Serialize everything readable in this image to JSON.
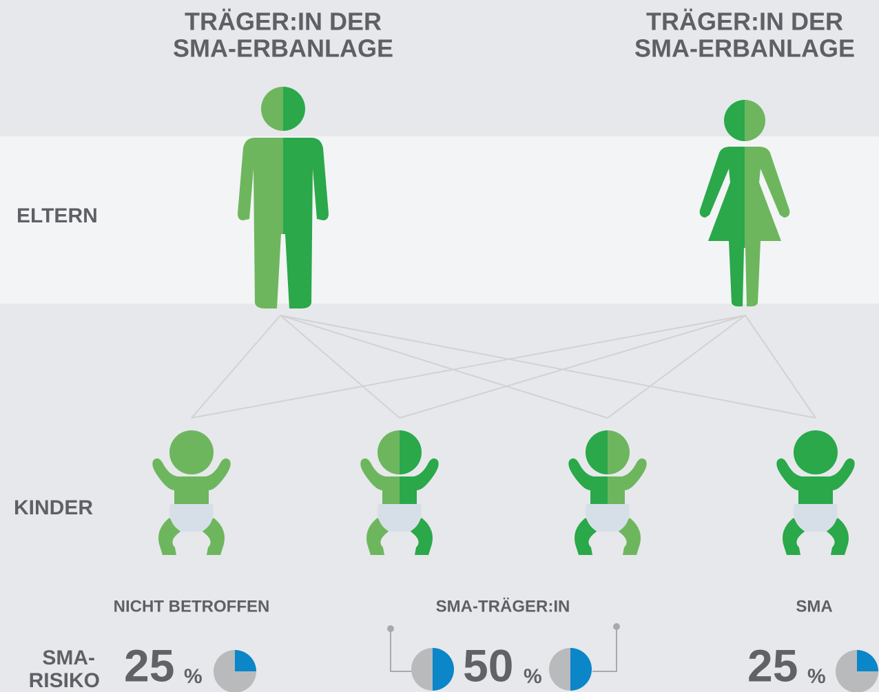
{
  "parents": [
    {
      "label": [
        "TRÄGER:IN DER",
        "SMA-ERBANLAGE"
      ]
    },
    {
      "label": [
        "TRÄGER:IN DER",
        "SMA-ERBANLAGE"
      ]
    }
  ],
  "rows": {
    "parents": "ELTERN",
    "children": "KINDER"
  },
  "outcomes": [
    {
      "label": "NICHT BETROFFEN",
      "risk": 25
    },
    {
      "label": "SMA-TRÄGER:IN",
      "risk": 50
    },
    {
      "label": "SMA",
      "risk": 25
    }
  ],
  "risk_label": [
    "SMA-",
    "RISIKO"
  ],
  "percent_sign": "%"
}
